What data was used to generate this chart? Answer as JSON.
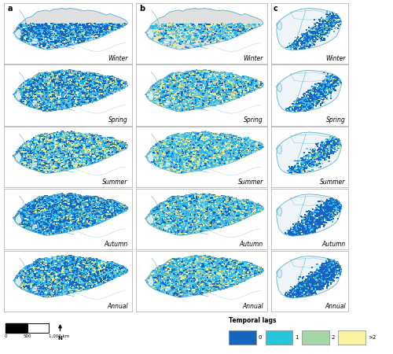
{
  "col_labels": [
    "a",
    "b",
    "c"
  ],
  "row_labels": [
    "Winter",
    "Spring",
    "Summer",
    "Autumn",
    "Annual"
  ],
  "legend_title": "Temporal lags",
  "legend_items": [
    "0",
    "1",
    "2",
    ">2"
  ],
  "legend_colors": [
    "#1565c0",
    "#26c6da",
    "#a5d6a7",
    "#f9f3a0"
  ],
  "lag_colors": [
    "#1565c0",
    "#29b6f6",
    "#80cbc4",
    "#e6ee9c"
  ],
  "nrows": 5,
  "ncols": 3,
  "figsize": [
    5.0,
    4.5
  ],
  "dpi": 100,
  "panel_bg": "#ffffff",
  "land_bg": "#e8e8e8",
  "water_fill": "#ddeef5",
  "border_lw": 0.5,
  "border_color": "#5bb0cc",
  "label_fontsize": 5.5,
  "col_label_fontsize": 7
}
